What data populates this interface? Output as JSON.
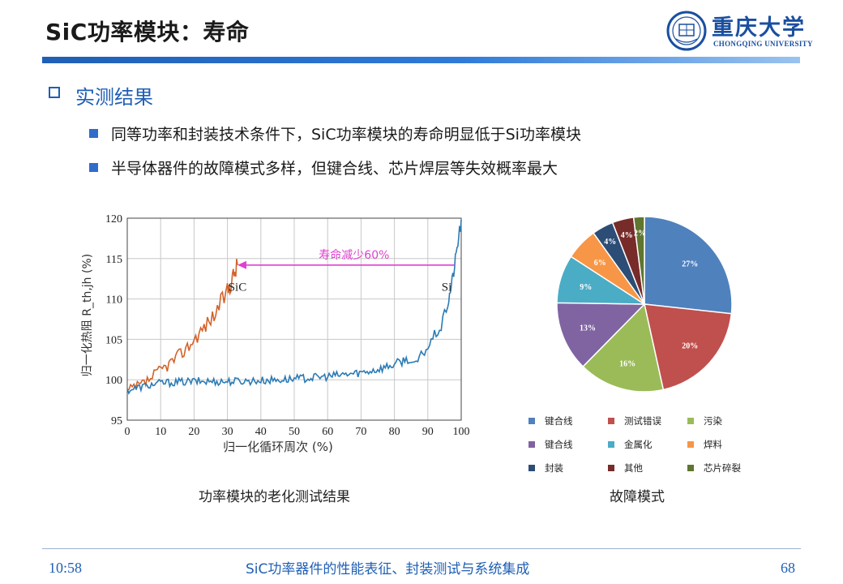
{
  "header": {
    "title": "SiC功率模块：寿命",
    "logo": {
      "cn": "重庆大学",
      "en": "CHONGQING UNIVERSITY",
      "icon": "university-seal-icon"
    }
  },
  "section": {
    "title": "实测结果",
    "icon": "checkbox-icon"
  },
  "bullets": [
    "同等功率和封装技术条件下，SiC功率模块的寿命明显低于Si功率模块",
    "半导体器件的故障模式多样，但键合线、芯片焊层等失效概率最大"
  ],
  "captions": {
    "left": "功率模块的老化测试结果",
    "right": "故障模式"
  },
  "footer": {
    "time": "10:58",
    "center": "SiC功率器件的性能表征、封装测试与系统集成",
    "page": "68"
  },
  "chart_data": [
    {
      "type": "line",
      "xlabel": "归一化循环周次 (%)",
      "ylabel": "归一化热阻  R_th,jh (%)",
      "xlim": [
        0,
        100
      ],
      "ylim": [
        95,
        120
      ],
      "xticks": [
        "0",
        "10",
        "20",
        "30",
        "40",
        "50",
        "60",
        "70",
        "80",
        "90",
        "100"
      ],
      "yticks": [
        "95",
        "100",
        "105",
        "110",
        "115",
        "120"
      ],
      "grid": true,
      "annotation": {
        "text": "寿命减少60%",
        "from_x": 98,
        "to_x": 33,
        "y": 114.2,
        "color": "#e040d0"
      },
      "series": [
        {
          "name": "SiC",
          "color": "#d2632a",
          "x": [
            0,
            2,
            4,
            6,
            8,
            10,
            12,
            14,
            16,
            18,
            20,
            22,
            24,
            26,
            28,
            30,
            31,
            32,
            33
          ],
          "y": [
            98.5,
            99.0,
            99.3,
            99.8,
            100.5,
            101.2,
            101.8,
            102.5,
            103.2,
            104.0,
            105.0,
            106.0,
            107.0,
            108.0,
            109.5,
            111.0,
            112.0,
            113.2,
            114.2
          ]
        },
        {
          "name": "Si",
          "color": "#2b7bb5",
          "x": [
            0,
            5,
            10,
            20,
            30,
            40,
            50,
            60,
            70,
            75,
            80,
            84,
            86,
            88,
            90,
            92,
            94,
            96,
            97,
            98,
            99,
            100
          ],
          "y": [
            98.7,
            99.2,
            99.6,
            99.8,
            99.8,
            99.9,
            100.1,
            100.4,
            100.9,
            101.3,
            101.9,
            102.6,
            101.7,
            103.0,
            104.0,
            105.5,
            106.5,
            109.5,
            111.5,
            114.0,
            117.0,
            119.8
          ]
        }
      ]
    },
    {
      "type": "pie",
      "slices": [
        {
          "label": "键合线",
          "value": 27,
          "color": "#4f81bd"
        },
        {
          "label": "测试错误",
          "value": 20,
          "color": "#c0504d"
        },
        {
          "label": "污染",
          "value": 16,
          "color": "#9bbb59"
        },
        {
          "label": "键合线",
          "value": 13,
          "color": "#8064a2"
        },
        {
          "label": "金属化",
          "value": 9,
          "color": "#4bacc6"
        },
        {
          "label": "焊料",
          "value": 6,
          "color": "#f79646"
        },
        {
          "label": "封装",
          "value": 4,
          "color": "#2c4d75"
        },
        {
          "label": "其他",
          "value": 4,
          "color": "#772c2a"
        },
        {
          "label": "芯片碎裂",
          "value": 2,
          "color": "#5f7530"
        }
      ],
      "value_labels": [
        "27%",
        "20%",
        "16%",
        "13%",
        "9%",
        "6%",
        "4%",
        "4%",
        "2%"
      ],
      "legend_position": "bottom"
    }
  ]
}
